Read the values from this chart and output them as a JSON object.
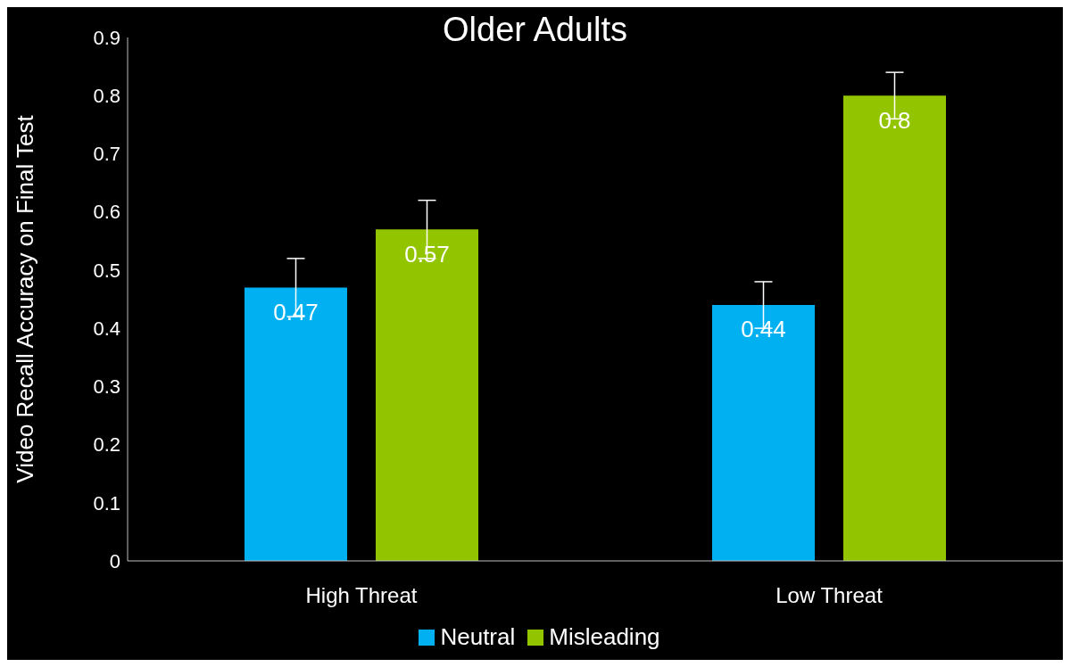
{
  "chart_data": {
    "type": "bar",
    "title": "Older Adults",
    "ylabel": "Video Recall Accuracy on Final Test",
    "categories": [
      "High Threat",
      "Low Threat"
    ],
    "series": [
      {
        "name": "Neutral",
        "color": "#00b0f0",
        "values": [
          0.47,
          0.44
        ],
        "errors": [
          0.05,
          0.04
        ]
      },
      {
        "name": "Misleading",
        "color": "#92c500",
        "values": [
          0.57,
          0.8
        ],
        "errors": [
          0.05,
          0.04
        ]
      }
    ],
    "ylim": [
      0,
      0.9
    ],
    "yticks": [
      0,
      0.1,
      0.2,
      0.3,
      0.4,
      0.5,
      0.6,
      0.7,
      0.8,
      0.9
    ],
    "grid": false,
    "legend": "bottom",
    "data_labels": true
  }
}
